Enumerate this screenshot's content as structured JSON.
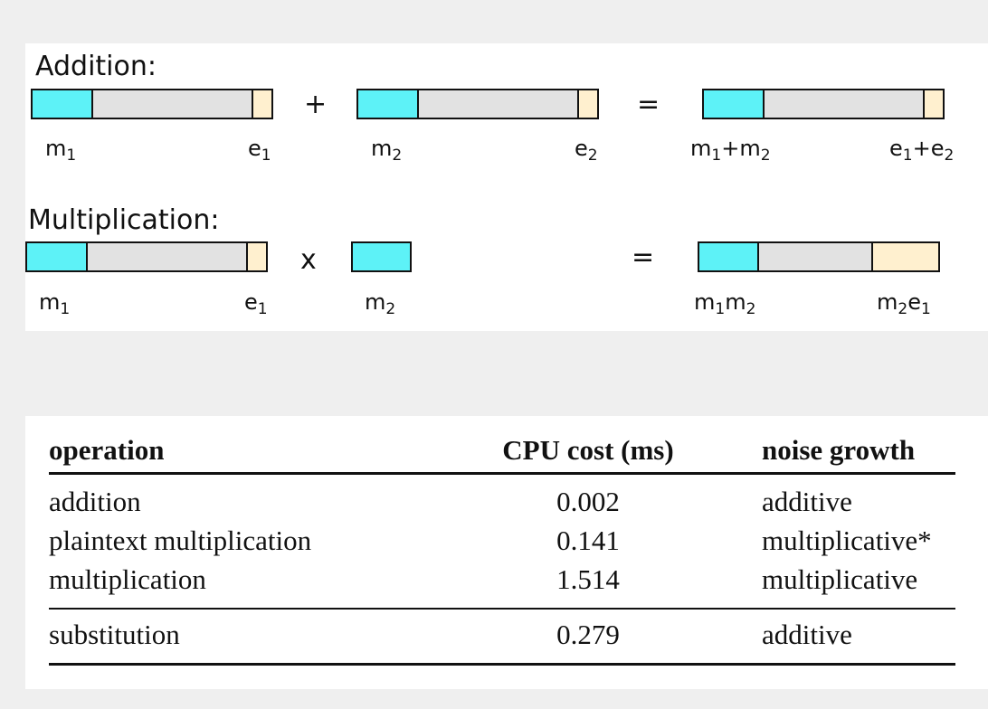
{
  "diagram": {
    "addition": {
      "heading": "Addition:",
      "plus": "+",
      "equals": "=",
      "labels": {
        "m1": "m",
        "m1_sub": "1",
        "e1": "e",
        "e1_sub": "1",
        "m2": "m",
        "m2_sub": "2",
        "e2": "e",
        "e2_sub": "2",
        "sum_m_a": "m",
        "sum_m_a_sub": "1",
        "sum_m_mid": "+m",
        "sum_m_b_sub": "2",
        "sum_e_a": "e",
        "sum_e_a_sub": "1",
        "sum_e_mid": "+e",
        "sum_e_b_sub": "2"
      }
    },
    "multiplication": {
      "heading": "Multiplication:",
      "times": "x",
      "equals": "=",
      "labels": {
        "m1": "m",
        "m1_sub": "1",
        "e1": "e",
        "e1_sub": "1",
        "m2": "m",
        "m2_sub": "2",
        "prod_m_a": "m",
        "prod_m_a_sub": "1",
        "prod_m_b": "m",
        "prod_m_b_sub": "2",
        "prod_e_a": "m",
        "prod_e_a_sub": "2",
        "prod_e_b": "e",
        "prod_e_b_sub": "1"
      }
    },
    "colors": {
      "mantissa": "#5df2f7",
      "body": "#e2e2e2",
      "error": "#fff0cf"
    }
  },
  "table": {
    "headers": [
      "operation",
      "CPU cost (ms)",
      "noise growth"
    ],
    "rows": [
      [
        "addition",
        "0.002",
        "additive"
      ],
      [
        "plaintext multiplication",
        "0.141",
        "multiplicative*"
      ],
      [
        "multiplication",
        "1.514",
        "multiplicative"
      ],
      [
        "substitution",
        "0.279",
        "additive"
      ]
    ]
  }
}
